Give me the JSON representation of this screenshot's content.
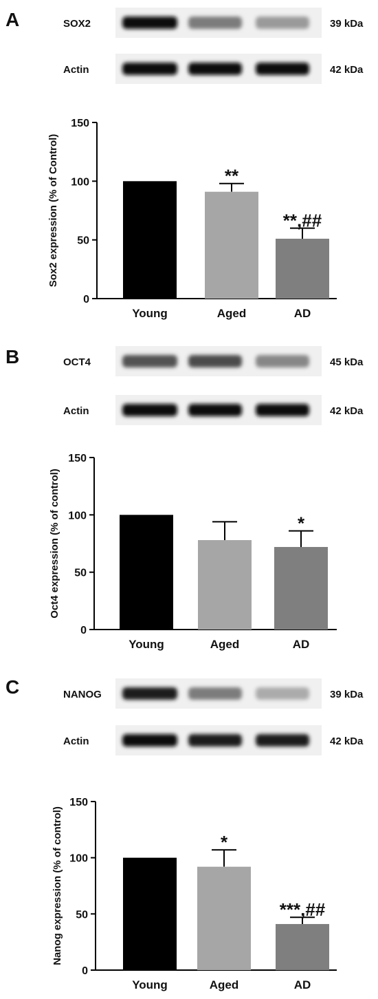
{
  "panels": [
    {
      "letter": "A",
      "blots": [
        {
          "label": "SOX2",
          "kda": "39 kDa",
          "intensity": [
            1.0,
            0.55,
            0.42
          ]
        },
        {
          "label": "Actin",
          "kda": "42 kDa",
          "intensity": [
            1.0,
            1.0,
            1.0
          ]
        }
      ]
    },
    {
      "letter": "B",
      "blots": [
        {
          "label": "OCT4",
          "kda": "45 kDa",
          "intensity": [
            0.72,
            0.75,
            0.5
          ]
        },
        {
          "label": "Actin",
          "kda": "42 kDa",
          "intensity": [
            1.0,
            1.0,
            1.0
          ]
        }
      ]
    },
    {
      "letter": "C",
      "blots": [
        {
          "label": "NANOG",
          "kda": "39 kDa",
          "intensity": [
            0.95,
            0.55,
            0.35
          ]
        },
        {
          "label": "Actin",
          "kda": "42 kDa",
          "intensity": [
            1.0,
            0.95,
            0.95
          ]
        }
      ]
    }
  ],
  "chart_data": [
    {
      "type": "bar",
      "ylabel": "Sox2 expression (% of Control)",
      "categories": [
        "Young",
        "Aged",
        "AD"
      ],
      "values": [
        100,
        91,
        51
      ],
      "errors": [
        0,
        7,
        9
      ],
      "annotations": [
        "",
        "**",
        "**,##"
      ],
      "yticks": [
        0,
        50,
        100,
        150
      ],
      "ylim": [
        0,
        150
      ],
      "colors": [
        "#000000",
        "#a6a6a6",
        "#7f7f7f"
      ]
    },
    {
      "type": "bar",
      "ylabel": "Oct4 expression (% of control)",
      "categories": [
        "Young",
        "Aged",
        "AD"
      ],
      "values": [
        100,
        78,
        72
      ],
      "errors": [
        0,
        16,
        14
      ],
      "annotations": [
        "",
        "",
        "*"
      ],
      "yticks": [
        0,
        50,
        100,
        150
      ],
      "ylim": [
        0,
        150
      ],
      "colors": [
        "#000000",
        "#a6a6a6",
        "#7f7f7f"
      ]
    },
    {
      "type": "bar",
      "ylabel": "Nanog expression (% of control)",
      "categories": [
        "Young",
        "Aged",
        "AD"
      ],
      "values": [
        100,
        92,
        41
      ],
      "errors": [
        0,
        15,
        6
      ],
      "annotations": [
        "",
        "*",
        "***,##"
      ],
      "yticks": [
        0,
        50,
        100,
        150
      ],
      "ylim": [
        0,
        150
      ],
      "colors": [
        "#000000",
        "#a6a6a6",
        "#7f7f7f"
      ]
    }
  ]
}
